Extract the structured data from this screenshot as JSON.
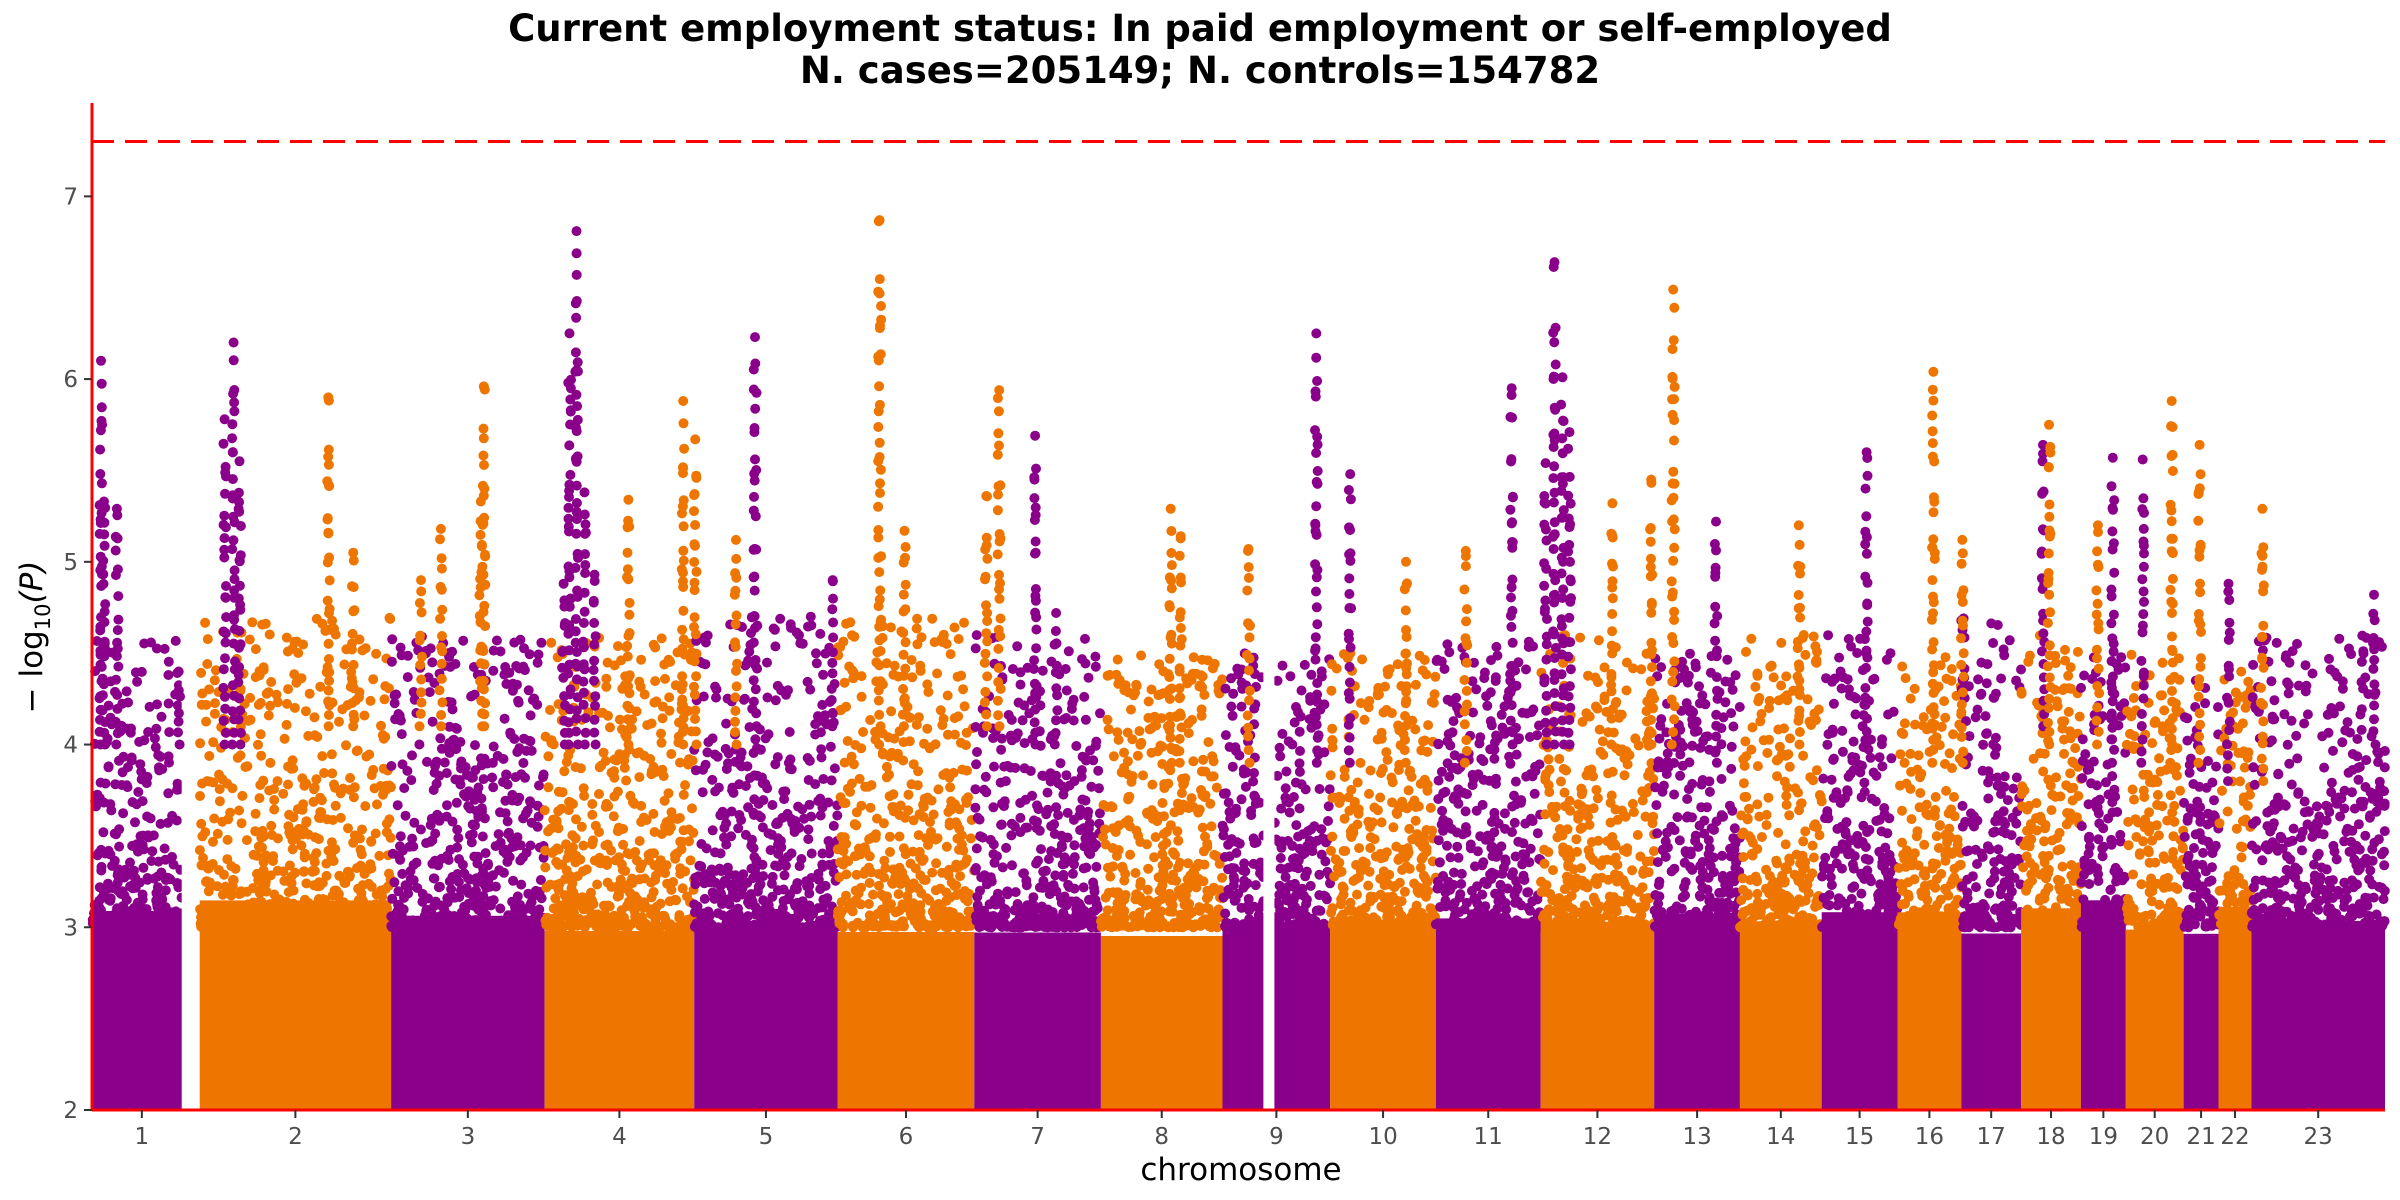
{
  "chart_data": {
    "type": "scatter",
    "subtype": "manhattan",
    "title": "Current employment status: In paid employment or self-employed",
    "subtitle": "N. cases=205149; N. controls=154782",
    "xlabel": "chromosome",
    "ylabel": "− log10(P)",
    "ylabel_main": "− log",
    "ylabel_sub": "10",
    "ylabel_paren": "(P)",
    "ylim": [
      2,
      7.5
    ],
    "yticks": [
      2,
      3,
      4,
      5,
      6,
      7
    ],
    "ytick_labels": [
      "2",
      "3",
      "4",
      "5",
      "6",
      "7"
    ],
    "significance_threshold": 7.3,
    "grid": false,
    "colors": {
      "odd_chromosomes": "#8B008B",
      "even_chromosomes": "#EE7600",
      "threshold_line": "#FF0000",
      "axis": "#FF0000"
    },
    "chromosomes": [
      {
        "label": "1",
        "start": 0,
        "end": 100,
        "color": "#8B008B",
        "base": 4.0,
        "gap": [
          90,
          104
        ]
      },
      {
        "label": "2",
        "start": 108,
        "end": 300,
        "color": "#EE7600",
        "base": 4.1
      },
      {
        "label": "3",
        "start": 300,
        "end": 454,
        "color": "#8B008B",
        "base": 4.0
      },
      {
        "label": "4",
        "start": 454,
        "end": 604,
        "color": "#EE7600",
        "base": 4.0
      },
      {
        "label": "5",
        "start": 604,
        "end": 748,
        "color": "#8B008B",
        "base": 4.1
      },
      {
        "label": "6",
        "start": 748,
        "end": 885,
        "color": "#EE7600",
        "base": 4.1
      },
      {
        "label": "7",
        "start": 885,
        "end": 1012,
        "color": "#8B008B",
        "base": 4.0
      },
      {
        "label": "8",
        "start": 1012,
        "end": 1134,
        "color": "#EE7600",
        "base": 3.9
      },
      {
        "label": "9",
        "start": 1134,
        "end": 1242,
        "color": "#8B008B",
        "base": 3.9,
        "gap": [
          1175,
          1186
        ]
      },
      {
        "label": "10",
        "start": 1242,
        "end": 1348,
        "color": "#EE7600",
        "base": 3.9
      },
      {
        "label": "11",
        "start": 1348,
        "end": 1453,
        "color": "#8B008B",
        "base": 4.0
      },
      {
        "label": "12",
        "start": 1453,
        "end": 1567,
        "color": "#EE7600",
        "base": 4.0
      },
      {
        "label": "13",
        "start": 1567,
        "end": 1653,
        "color": "#8B008B",
        "base": 3.9
      },
      {
        "label": "14",
        "start": 1653,
        "end": 1735,
        "color": "#EE7600",
        "base": 4.0
      },
      {
        "label": "15",
        "start": 1735,
        "end": 1811,
        "color": "#8B008B",
        "base": 4.0
      },
      {
        "label": "16",
        "start": 1811,
        "end": 1875,
        "color": "#EE7600",
        "base": 3.9
      },
      {
        "label": "17",
        "start": 1875,
        "end": 1935,
        "color": "#8B008B",
        "base": 4.1
      },
      {
        "label": "18",
        "start": 1935,
        "end": 1995,
        "color": "#EE7600",
        "base": 4.0
      },
      {
        "label": "19",
        "start": 1995,
        "end": 2040,
        "color": "#8B008B",
        "base": 3.9
      },
      {
        "label": "20",
        "start": 2040,
        "end": 2098,
        "color": "#EE7600",
        "base": 3.9
      },
      {
        "label": "21",
        "start": 2098,
        "end": 2133,
        "color": "#8B008B",
        "base": 3.8
      },
      {
        "label": "22",
        "start": 2133,
        "end": 2166,
        "color": "#EE7600",
        "base": 3.8
      },
      {
        "label": "23",
        "start": 2166,
        "end": 2300,
        "color": "#8B008B",
        "base": 4.0
      }
    ],
    "peaks": [
      {
        "chr": "1",
        "x": 9,
        "p": 6.1
      },
      {
        "chr": "1",
        "x": 12,
        "p": 5.33
      },
      {
        "chr": "1",
        "x": 25,
        "p": 5.29
      },
      {
        "chr": "1",
        "x": 87,
        "p": 4.4
      },
      {
        "chr": "1",
        "x": 133,
        "p": 5.78
      },
      {
        "chr": "1",
        "x": 142,
        "p": 6.2
      },
      {
        "chr": "1",
        "x": 148,
        "p": 5.55
      },
      {
        "chr": "2",
        "x": 237,
        "p": 5.9
      },
      {
        "chr": "2",
        "x": 262,
        "p": 5.05
      },
      {
        "chr": "2",
        "x": 330,
        "p": 4.9
      },
      {
        "chr": "2",
        "x": 350,
        "p": 5.18
      },
      {
        "chr": "2",
        "x": 390,
        "p": 5.33
      },
      {
        "chr": "2",
        "x": 393,
        "p": 5.96
      },
      {
        "chr": "3",
        "x": 473,
        "p": 4.88
      },
      {
        "chr": "3",
        "x": 479,
        "p": 6.25
      },
      {
        "chr": "3",
        "x": 486,
        "p": 6.81
      },
      {
        "chr": "3",
        "x": 494,
        "p": 5.38
      },
      {
        "chr": "3",
        "x": 504,
        "p": 4.93
      },
      {
        "chr": "4",
        "x": 538,
        "p": 5.34
      },
      {
        "chr": "4",
        "x": 593,
        "p": 5.88
      },
      {
        "chr": "4",
        "x": 605,
        "p": 5.67
      },
      {
        "chr": "4",
        "x": 646,
        "p": 5.12
      },
      {
        "chr": "5",
        "x": 665,
        "p": 6.23
      },
      {
        "chr": "5",
        "x": 743,
        "p": 4.9
      },
      {
        "chr": "6",
        "x": 790,
        "p": 6.87
      },
      {
        "chr": "6",
        "x": 815,
        "p": 5.17
      },
      {
        "chr": "6",
        "x": 897,
        "p": 5.36
      },
      {
        "chr": "6",
        "x": 910,
        "p": 5.94
      },
      {
        "chr": "7",
        "x": 946,
        "p": 5.69
      },
      {
        "chr": "7",
        "x": 967,
        "p": 4.72
      },
      {
        "chr": "8",
        "x": 1082,
        "p": 5.29
      },
      {
        "chr": "8",
        "x": 1092,
        "p": 5.14
      },
      {
        "chr": "8",
        "x": 1160,
        "p": 5.07
      },
      {
        "chr": "9",
        "x": 1228,
        "p": 6.25
      },
      {
        "chr": "9",
        "x": 1262,
        "p": 5.48
      },
      {
        "chr": "10",
        "x": 1318,
        "p": 5.0
      },
      {
        "chr": "10",
        "x": 1378,
        "p": 5.06
      },
      {
        "chr": "11",
        "x": 1424,
        "p": 5.95
      },
      {
        "chr": "11",
        "x": 1458,
        "p": 5.54
      },
      {
        "chr": "11",
        "x": 1467,
        "p": 6.64
      },
      {
        "chr": "11",
        "x": 1475,
        "p": 6.01
      },
      {
        "chr": "11",
        "x": 1482,
        "p": 5.71
      },
      {
        "chr": "12",
        "x": 1525,
        "p": 5.32
      },
      {
        "chr": "12",
        "x": 1564,
        "p": 5.45
      },
      {
        "chr": "12",
        "x": 1586,
        "p": 6.49
      },
      {
        "chr": "13",
        "x": 1629,
        "p": 5.22
      },
      {
        "chr": "14",
        "x": 1712,
        "p": 5.2
      },
      {
        "chr": "15",
        "x": 1780,
        "p": 5.6
      },
      {
        "chr": "16",
        "x": 1847,
        "p": 6.04
      },
      {
        "chr": "16",
        "x": 1876,
        "p": 5.12
      },
      {
        "chr": "17",
        "x": 1957,
        "p": 5.64
      },
      {
        "chr": "18",
        "x": 1963,
        "p": 5.75
      },
      {
        "chr": "18",
        "x": 2012,
        "p": 5.2
      },
      {
        "chr": "19",
        "x": 2027,
        "p": 5.57
      },
      {
        "chr": "19",
        "x": 2057,
        "p": 5.56
      },
      {
        "chr": "20",
        "x": 2086,
        "p": 5.88
      },
      {
        "chr": "20",
        "x": 2114,
        "p": 5.64
      },
      {
        "chr": "21",
        "x": 2143,
        "p": 4.88
      },
      {
        "chr": "22",
        "x": 2177,
        "p": 5.29
      },
      {
        "chr": "23",
        "x": 2289,
        "p": 4.82
      }
    ]
  }
}
